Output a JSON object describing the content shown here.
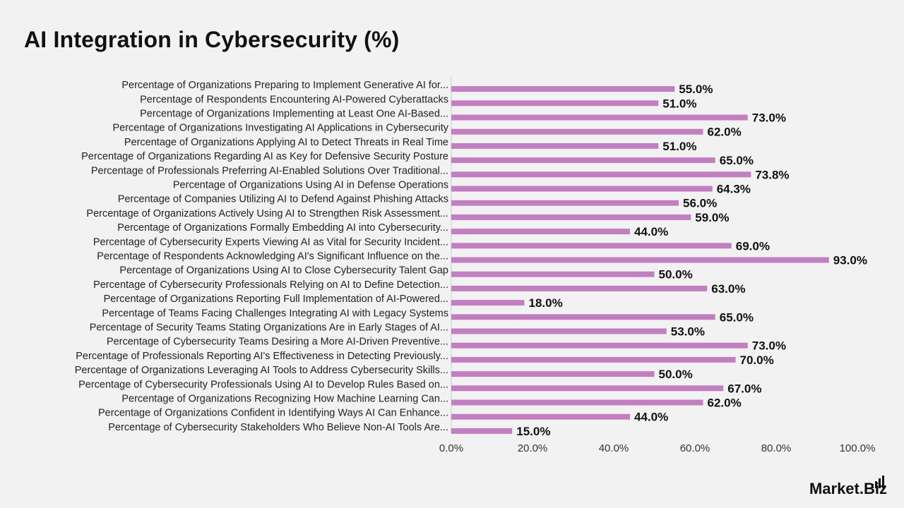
{
  "title": "AI Integration in Cybersecurity (%)",
  "brand": "Market.Biz",
  "colors": {
    "bar": "#c27fc0",
    "background": "#f2f2f2",
    "axis": "#cccccc"
  },
  "chart_data": {
    "type": "bar",
    "orientation": "horizontal",
    "title": "AI Integration in Cybersecurity (%)",
    "xlim": [
      0,
      100
    ],
    "xticks": [
      "0.0%",
      "20.0%",
      "40.0%",
      "60.0%",
      "80.0%",
      "100.0%"
    ],
    "grid": false,
    "legend": "none",
    "categories": [
      "Percentage of Organizations Preparing to Implement Generative AI for...",
      "Percentage of Respondents Encountering AI-Powered Cyberattacks",
      "Percentage of Organizations Implementing at Least One AI-Based...",
      "Percentage of Organizations Investigating AI Applications in Cybersecurity",
      "Percentage of Organizations Applying AI to Detect Threats in Real Time",
      "Percentage of Organizations Regarding AI as Key for Defensive Security Posture",
      "Percentage of Professionals Preferring AI-Enabled Solutions Over Traditional...",
      "Percentage of Organizations Using AI in Defense Operations",
      "Percentage of Companies Utilizing AI to Defend Against Phishing Attacks",
      "Percentage of Organizations Actively Using AI to Strengthen Risk Assessment...",
      "Percentage of Organizations Formally Embedding AI into Cybersecurity...",
      "Percentage of Cybersecurity Experts Viewing AI as Vital for Security Incident...",
      "Percentage of Respondents Acknowledging AI's Significant Influence on the...",
      "Percentage of Organizations Using AI to Close Cybersecurity Talent Gap",
      "Percentage of Cybersecurity Professionals Relying on AI to Define Detection...",
      "Percentage of Organizations Reporting Full Implementation of AI-Powered...",
      "Percentage of Teams Facing Challenges Integrating AI with Legacy Systems",
      "Percentage of Security Teams Stating Organizations Are in Early Stages of AI...",
      "Percentage of Cybersecurity Teams Desiring a More AI-Driven Preventive...",
      "Percentage of Professionals Reporting AI's Effectiveness in Detecting Previously...",
      "Percentage of Organizations Leveraging AI Tools to Address Cybersecurity Skills...",
      "Percentage of Cybersecurity Professionals Using AI to Develop Rules Based on...",
      "Percentage of Organizations Recognizing How Machine Learning Can...",
      "Percentage of Organizations Confident in Identifying Ways AI Can Enhance...",
      "Percentage of Cybersecurity Stakeholders Who Believe Non-AI Tools Are..."
    ],
    "values": [
      55.0,
      51.0,
      73.0,
      62.0,
      51.0,
      65.0,
      73.8,
      64.3,
      56.0,
      59.0,
      44.0,
      69.0,
      93.0,
      50.0,
      63.0,
      18.0,
      65.0,
      53.0,
      73.0,
      70.0,
      50.0,
      67.0,
      62.0,
      44.0,
      15.0
    ],
    "value_labels": [
      "55.0%",
      "51.0%",
      "73.0%",
      "62.0%",
      "51.0%",
      "65.0%",
      "73.8%",
      "64.3%",
      "56.0%",
      "59.0%",
      "44.0%",
      "69.0%",
      "93.0%",
      "50.0%",
      "63.0%",
      "18.0%",
      "65.0%",
      "53.0%",
      "73.0%",
      "70.0%",
      "50.0%",
      "67.0%",
      "62.0%",
      "44.0%",
      "15.0%"
    ]
  }
}
